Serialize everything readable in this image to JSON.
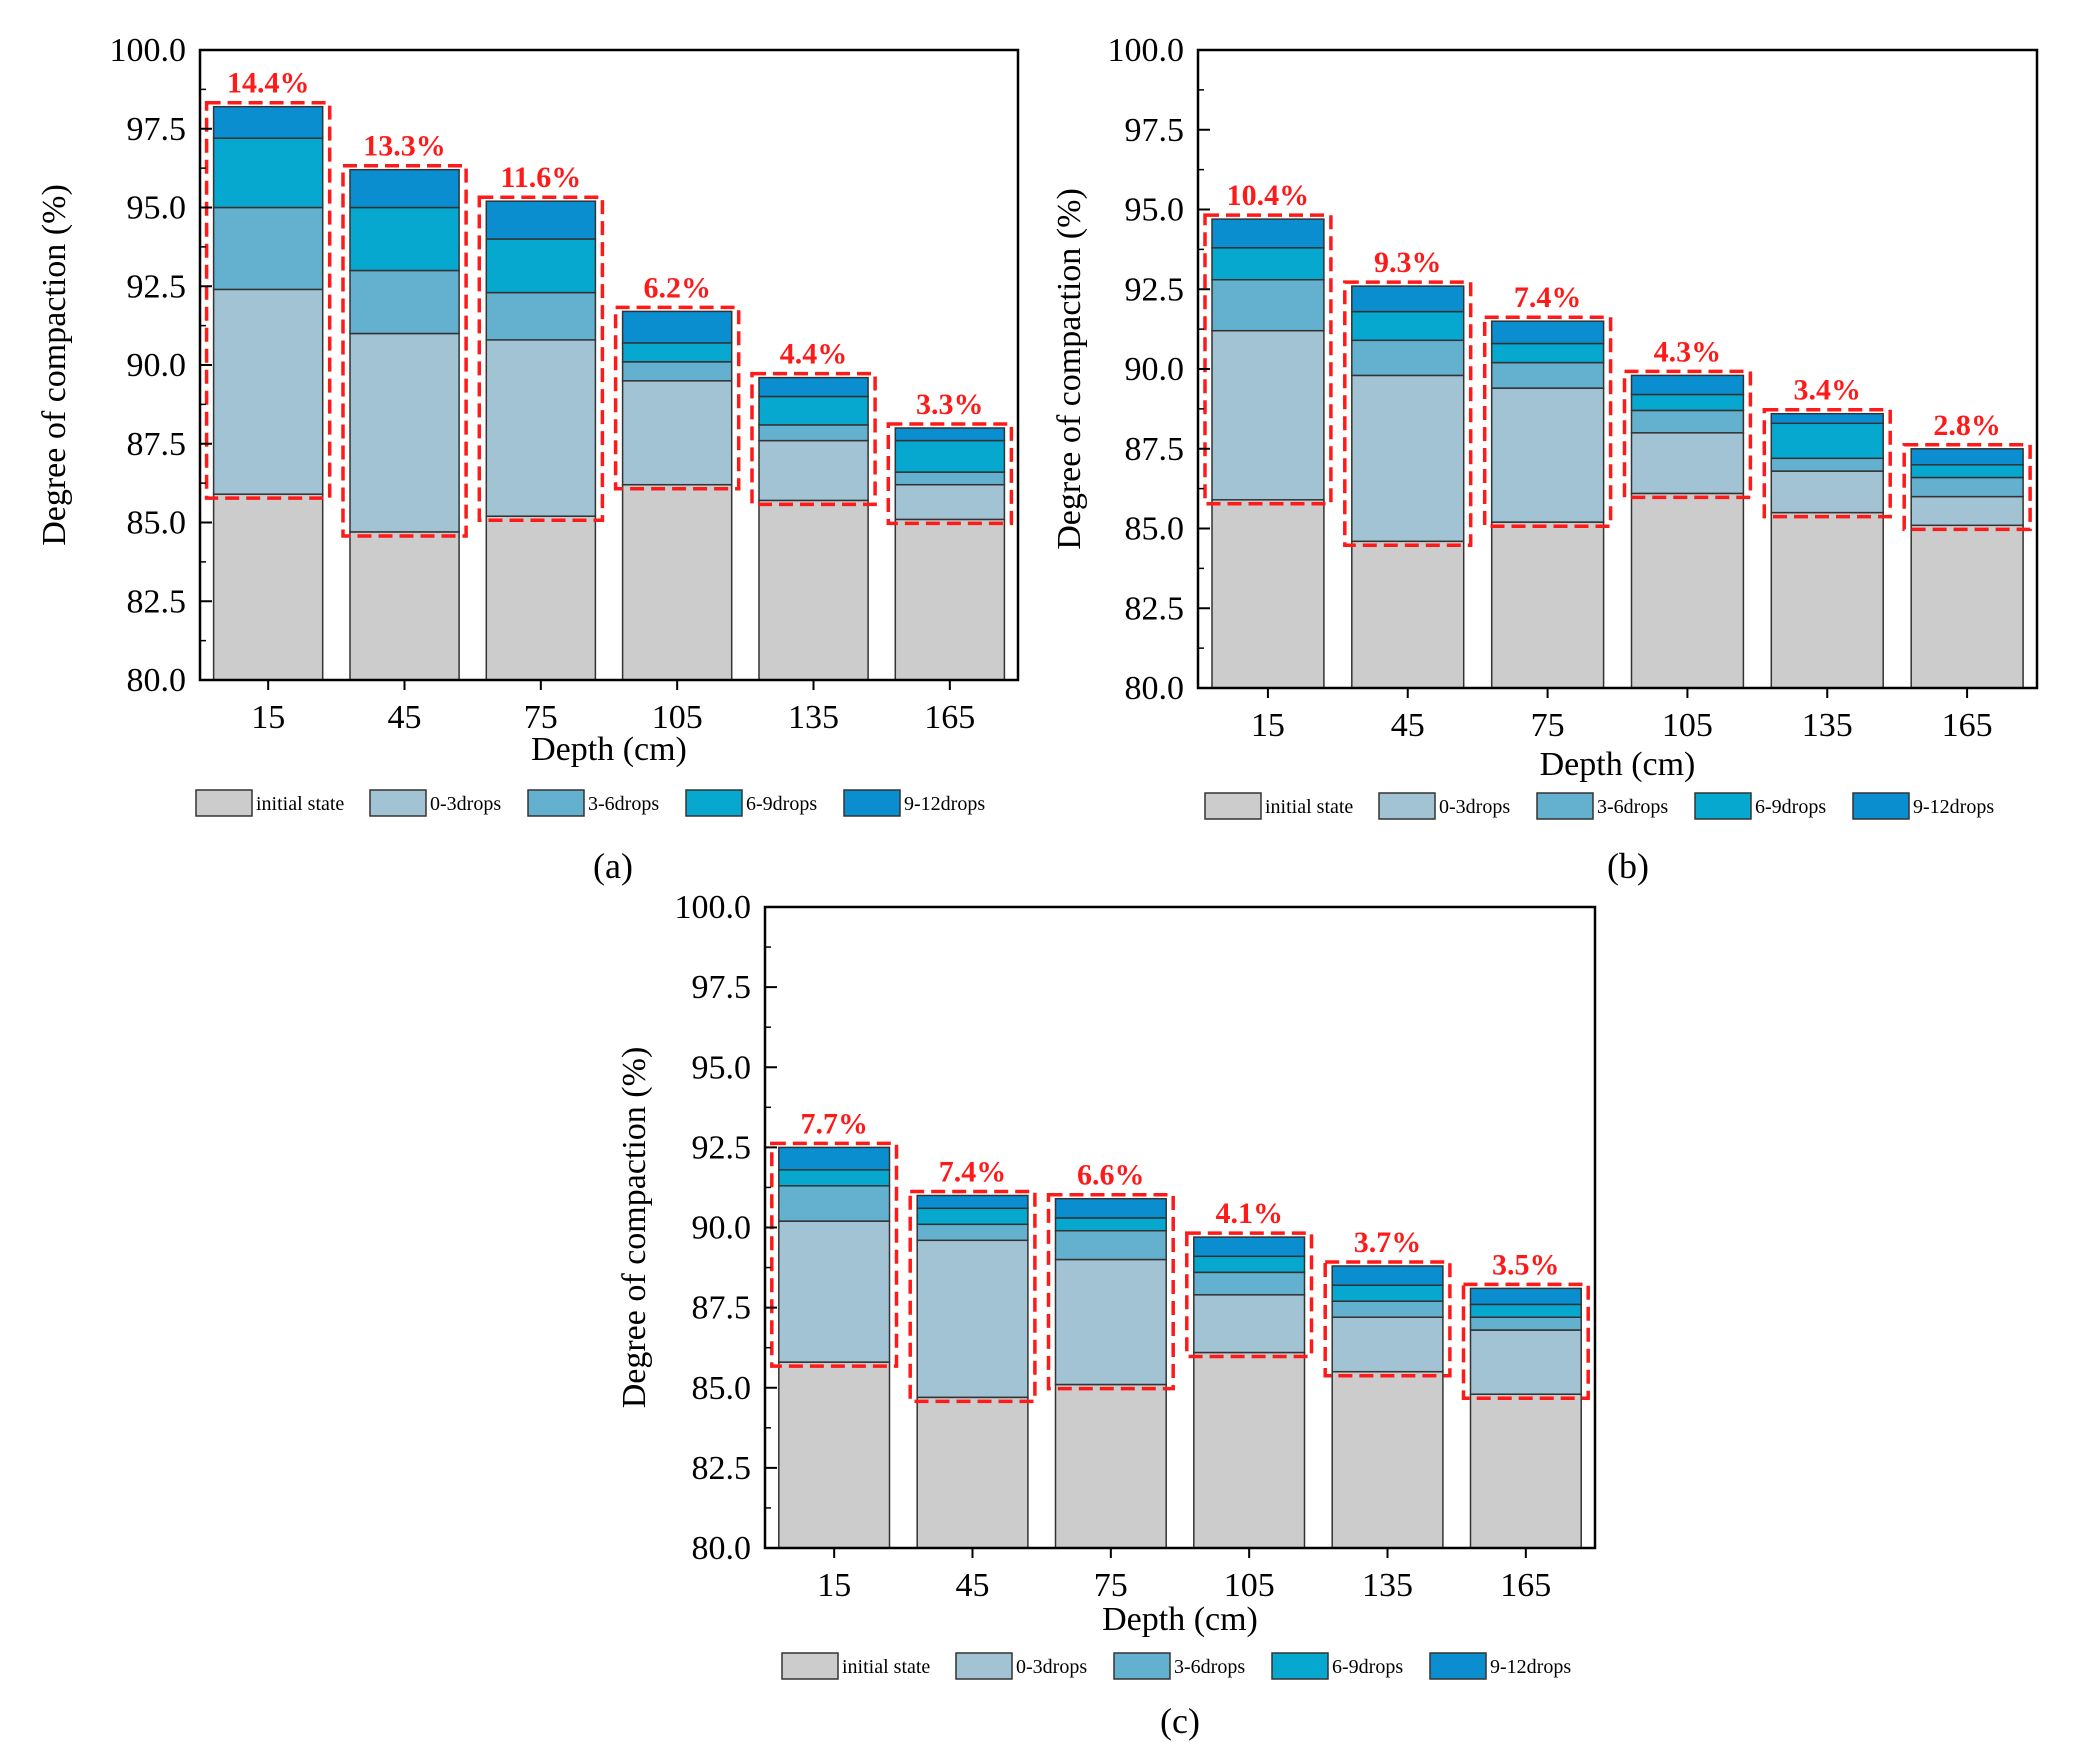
{
  "chart_data": [
    {
      "type": "bar",
      "stacked": true,
      "panel_label": "(a)",
      "categories": [
        "15",
        "45",
        "75",
        "105",
        "135",
        "165"
      ],
      "xlabel": "Depth  (cm)",
      "ylabel": "Degree of compaction (%)",
      "ylim": [
        80.0,
        100.0
      ],
      "yticks": [
        "80.0",
        "82.5",
        "85.0",
        "87.5",
        "90.0",
        "92.5",
        "95.0",
        "97.5",
        "100.0"
      ],
      "cumulative_levels": {
        "initial state": [
          85.9,
          84.7,
          85.2,
          86.2,
          85.7,
          85.1
        ],
        "0-3drops": [
          92.4,
          91.0,
          90.8,
          89.5,
          87.6,
          86.2
        ],
        "3-6drops": [
          95.0,
          93.0,
          92.3,
          90.1,
          88.1,
          86.6
        ],
        "6-9drops": [
          97.2,
          95.0,
          94.0,
          90.7,
          89.0,
          87.6
        ],
        "9-12drops": [
          98.2,
          96.2,
          95.2,
          91.7,
          89.6,
          88.0
        ]
      },
      "increase_labels": [
        "14.4%",
        "13.3%",
        "11.6%",
        "6.2%",
        "4.4%",
        "3.3%"
      ]
    },
    {
      "type": "bar",
      "stacked": true,
      "panel_label": "(b)",
      "categories": [
        "15",
        "45",
        "75",
        "105",
        "135",
        "165"
      ],
      "xlabel": "Depth (cm)",
      "ylabel": "Degree of compaction (%)",
      "ylim": [
        80.0,
        100.0
      ],
      "yticks": [
        "80.0",
        "82.5",
        "85.0",
        "87.5",
        "90.0",
        "92.5",
        "95.0",
        "97.5",
        "100.0"
      ],
      "cumulative_levels": {
        "initial state": [
          85.9,
          84.6,
          85.2,
          86.1,
          85.5,
          85.1
        ],
        "0-3drops": [
          91.2,
          89.8,
          89.4,
          88.0,
          86.8,
          86.0
        ],
        "3-6drops": [
          92.8,
          90.9,
          90.2,
          88.7,
          87.2,
          86.6
        ],
        "6-9drops": [
          93.8,
          91.8,
          90.8,
          89.2,
          88.3,
          87.0
        ],
        "9-12drops": [
          94.7,
          92.6,
          91.5,
          89.8,
          88.6,
          87.5
        ]
      },
      "increase_labels": [
        "10.4%",
        "9.3%",
        "7.4%",
        "4.3%",
        "3.4%",
        "2.8%"
      ]
    },
    {
      "type": "bar",
      "stacked": true,
      "panel_label": "(c)",
      "categories": [
        "15",
        "45",
        "75",
        "105",
        "135",
        "165"
      ],
      "xlabel": "Depth (cm)",
      "ylabel": "Degree of compaction (%)",
      "ylim": [
        80.0,
        100.0
      ],
      "yticks": [
        "80.0",
        "82.5",
        "85.0",
        "87.5",
        "90.0",
        "92.5",
        "95.0",
        "97.5",
        "100.0"
      ],
      "cumulative_levels": {
        "initial state": [
          85.8,
          84.7,
          85.1,
          86.1,
          85.5,
          84.8
        ],
        "0-3drops": [
          90.2,
          89.6,
          89.0,
          87.9,
          87.2,
          86.8
        ],
        "3-6drops": [
          91.3,
          90.1,
          89.9,
          88.6,
          87.7,
          87.2
        ],
        "6-9drops": [
          91.8,
          90.6,
          90.3,
          89.1,
          88.2,
          87.6
        ],
        "9-12drops": [
          92.5,
          91.0,
          90.9,
          89.7,
          88.8,
          88.1
        ]
      },
      "increase_labels": [
        "7.7%",
        "7.4%",
        "6.6%",
        "4.1%",
        "3.7%",
        "3.5%"
      ]
    }
  ],
  "legend": {
    "series": [
      "initial state",
      "0-3drops",
      "3-6drops",
      "6-9drops",
      "9-12drops"
    ],
    "colors": [
      "#cccccc",
      "#a2c3d3",
      "#64b1cf",
      "#07a8d0",
      "#0b8ed0"
    ]
  },
  "annotation_color": "#ff1a1a"
}
